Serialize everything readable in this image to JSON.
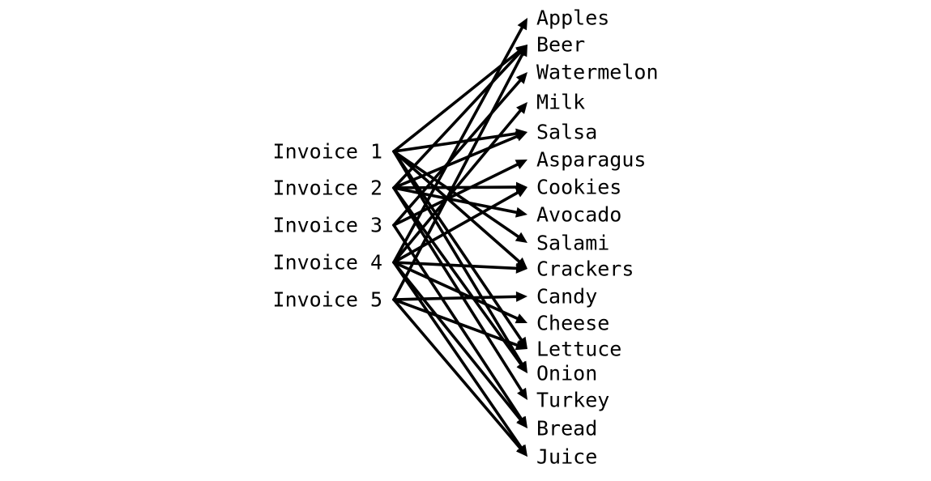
{
  "diagram": {
    "type": "bipartite-graph",
    "colors": {
      "background": "#ffffff",
      "ink": "#000000"
    },
    "invoices": [
      {
        "id": "inv1",
        "label": "Invoice 1"
      },
      {
        "id": "inv2",
        "label": "Invoice 2"
      },
      {
        "id": "inv3",
        "label": "Invoice 3"
      },
      {
        "id": "inv4",
        "label": "Invoice 4"
      },
      {
        "id": "inv5",
        "label": "Invoice 5"
      }
    ],
    "items": [
      {
        "id": "apples",
        "label": "Apples"
      },
      {
        "id": "beer",
        "label": "Beer"
      },
      {
        "id": "watermelon",
        "label": "Watermelon"
      },
      {
        "id": "milk",
        "label": "Milk"
      },
      {
        "id": "salsa",
        "label": "Salsa"
      },
      {
        "id": "asparagus",
        "label": "Asparagus"
      },
      {
        "id": "cookies",
        "label": "Cookies"
      },
      {
        "id": "avocado",
        "label": "Avocado"
      },
      {
        "id": "salami",
        "label": "Salami"
      },
      {
        "id": "crackers",
        "label": "Crackers"
      },
      {
        "id": "candy",
        "label": "Candy"
      },
      {
        "id": "cheese",
        "label": "Cheese"
      },
      {
        "id": "lettuce",
        "label": "Lettuce"
      },
      {
        "id": "onion",
        "label": "Onion"
      },
      {
        "id": "turkey",
        "label": "Turkey"
      },
      {
        "id": "bread",
        "label": "Bread"
      },
      {
        "id": "juice",
        "label": "Juice"
      }
    ],
    "edges": [
      {
        "from": "inv1",
        "to": "beer"
      },
      {
        "from": "inv1",
        "to": "salsa"
      },
      {
        "from": "inv1",
        "to": "salami"
      },
      {
        "from": "inv1",
        "to": "crackers"
      },
      {
        "from": "inv1",
        "to": "lettuce"
      },
      {
        "from": "inv1",
        "to": "onion"
      },
      {
        "from": "inv2",
        "to": "beer"
      },
      {
        "from": "inv2",
        "to": "salsa"
      },
      {
        "from": "inv2",
        "to": "cookies"
      },
      {
        "from": "inv2",
        "to": "avocado"
      },
      {
        "from": "inv2",
        "to": "onion"
      },
      {
        "from": "inv2",
        "to": "turkey"
      },
      {
        "from": "inv3",
        "to": "watermelon"
      },
      {
        "from": "inv3",
        "to": "asparagus"
      },
      {
        "from": "inv3",
        "to": "bread"
      },
      {
        "from": "inv4",
        "to": "apples"
      },
      {
        "from": "inv4",
        "to": "milk"
      },
      {
        "from": "inv4",
        "to": "cookies"
      },
      {
        "from": "inv4",
        "to": "crackers"
      },
      {
        "from": "inv4",
        "to": "cheese"
      },
      {
        "from": "inv4",
        "to": "bread"
      },
      {
        "from": "inv4",
        "to": "juice"
      },
      {
        "from": "inv5",
        "to": "beer"
      },
      {
        "from": "inv5",
        "to": "candy"
      },
      {
        "from": "inv5",
        "to": "lettuce"
      },
      {
        "from": "inv5",
        "to": "juice"
      }
    ]
  }
}
